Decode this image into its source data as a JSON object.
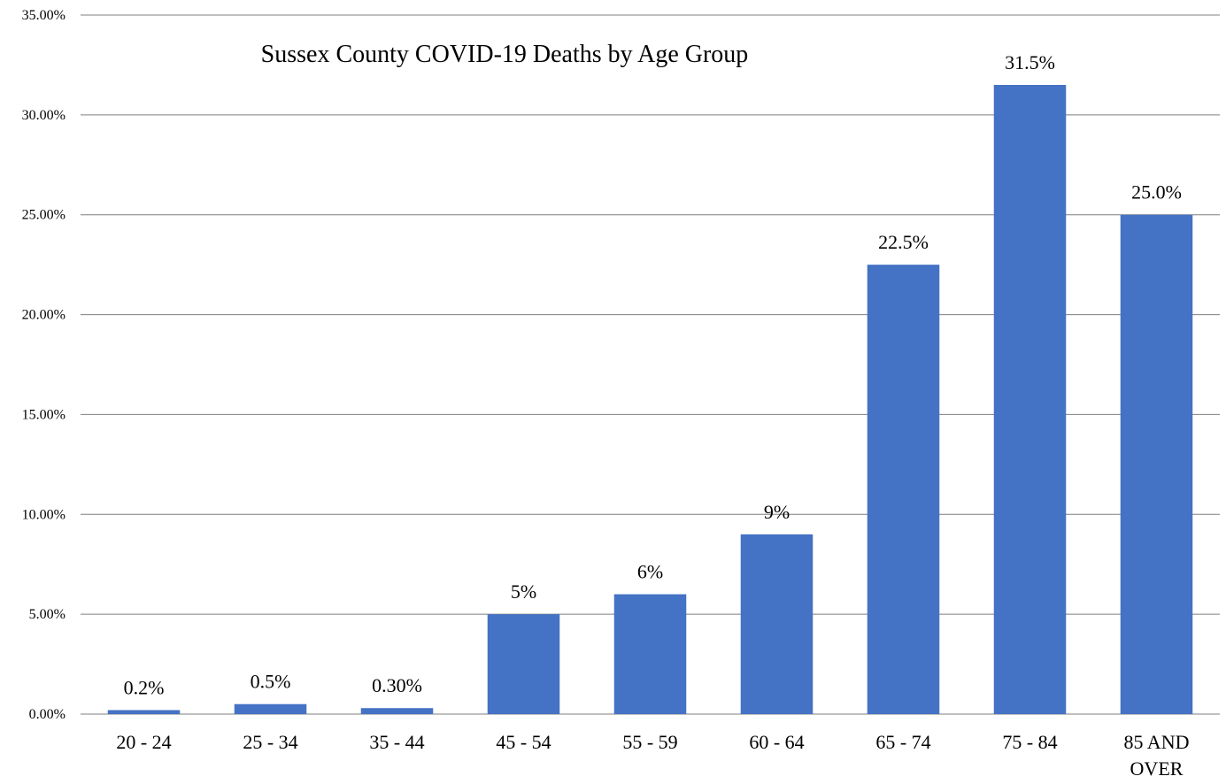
{
  "chart_data": {
    "type": "bar",
    "title": "Sussex County COVID-19 Deaths by Age Group",
    "xlabel": "",
    "ylabel": "",
    "ylim": [
      0,
      35
    ],
    "yticks": [
      0,
      5,
      10,
      15,
      20,
      25,
      30,
      35
    ],
    "ytick_labels": [
      "0.00%",
      "5.00%",
      "10.00%",
      "15.00%",
      "20.00%",
      "25.00%",
      "30.00%",
      "35.00%"
    ],
    "categories": [
      "20 - 24",
      "25 - 34",
      "35 - 44",
      "45 - 54",
      "55 - 59",
      "60 - 64",
      "65 - 74",
      "75 - 84",
      "85 AND OVER"
    ],
    "values": [
      0.2,
      0.5,
      0.3,
      5,
      6,
      9,
      22.5,
      31.5,
      25.0
    ],
    "data_labels": [
      "0.2%",
      "0.5%",
      "0.30%",
      "5%",
      "6%",
      "9%",
      "22.5%",
      "31.5%",
      "25.0%"
    ],
    "grid": true,
    "legend": "none",
    "bar_color": "#4472C4",
    "gridline_color": "#7F7F7F"
  }
}
